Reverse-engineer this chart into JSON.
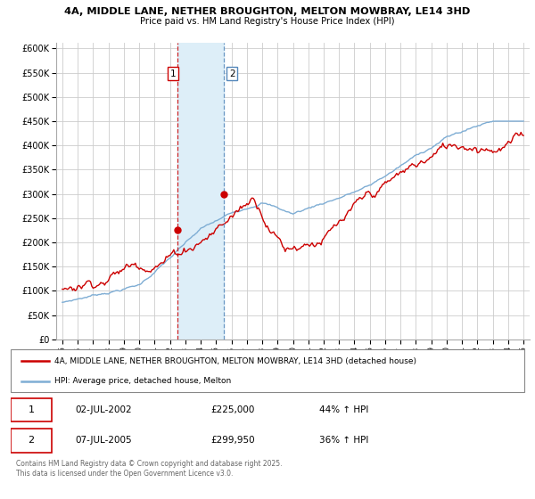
{
  "title1": "4A, MIDDLE LANE, NETHER BROUGHTON, MELTON MOWBRAY, LE14 3HD",
  "title2": "Price paid vs. HM Land Registry's House Price Index (HPI)",
  "ylim": [
    0,
    612500
  ],
  "yticks": [
    0,
    50000,
    100000,
    150000,
    200000,
    250000,
    300000,
    350000,
    400000,
    450000,
    500000,
    550000,
    600000
  ],
  "ytick_labels": [
    "£0",
    "£50K",
    "£100K",
    "£150K",
    "£200K",
    "£250K",
    "£300K",
    "£350K",
    "£400K",
    "£450K",
    "£500K",
    "£550K",
    "£600K"
  ],
  "red_color": "#cc0000",
  "blue_color": "#7eadd4",
  "shaded_color": "#ddeef8",
  "legend_label_red": "4A, MIDDLE LANE, NETHER BROUGHTON, MELTON MOWBRAY, LE14 3HD (detached house)",
  "legend_label_blue": "HPI: Average price, detached house, Melton",
  "transaction1_date": "02-JUL-2002",
  "transaction1_price": "£225,000",
  "transaction1_hpi": "44% ↑ HPI",
  "transaction1_year": 2002.5,
  "transaction1_value": 225000,
  "transaction2_date": "07-JUL-2005",
  "transaction2_price": "£299,950",
  "transaction2_hpi": "36% ↑ HPI",
  "transaction2_year": 2005.5,
  "transaction2_value": 299950,
  "footnote": "Contains HM Land Registry data © Crown copyright and database right 2025.\nThis data is licensed under the Open Government Licence v3.0.",
  "vline1_x": 2002.5,
  "vline2_x": 2005.5,
  "xlim": [
    1994.6,
    2025.4
  ]
}
